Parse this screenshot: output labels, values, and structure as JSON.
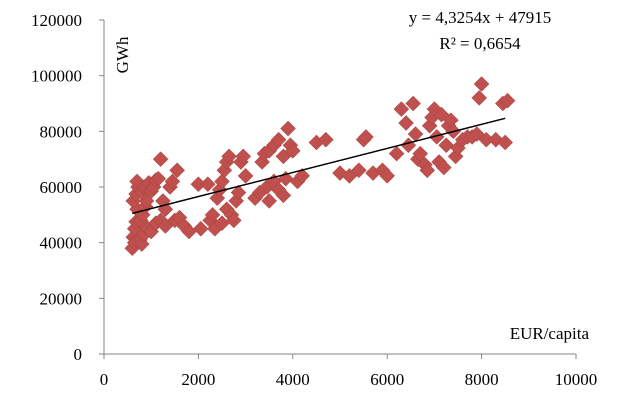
{
  "chart_data": {
    "type": "scatter",
    "title": "",
    "xlabel": "EUR/capita",
    "ylabel": "GWh",
    "xlim": [
      0,
      10000
    ],
    "ylim": [
      0,
      120000
    ],
    "x_ticks": [
      "0",
      "2000",
      "4000",
      "6000",
      "8000",
      "10000"
    ],
    "y_ticks": [
      "0",
      "20000",
      "40000",
      "60000",
      "80000",
      "100000",
      "120000"
    ],
    "grid": false,
    "marker_color": "#c0504d",
    "trendline": {
      "equation": "y = 4,3254x + 47915",
      "r_squared": "R² = 0,6654",
      "slope": 4.3254,
      "intercept": 47915,
      "x_range": [
        600,
        8500
      ],
      "color": "#000000"
    },
    "series": [
      {
        "points": [
          [
            600,
            38000
          ],
          [
            620,
            42000
          ],
          [
            650,
            45000
          ],
          [
            680,
            47500
          ],
          [
            700,
            52000
          ],
          [
            620,
            55000
          ],
          [
            680,
            57500
          ],
          [
            720,
            60000
          ],
          [
            700,
            62000
          ],
          [
            650,
            40000
          ],
          [
            760,
            41000
          ],
          [
            800,
            39500
          ],
          [
            850,
            43000
          ],
          [
            900,
            45500
          ],
          [
            780,
            48000
          ],
          [
            820,
            50000
          ],
          [
            880,
            53000
          ],
          [
            900,
            55000
          ],
          [
            800,
            58000
          ],
          [
            850,
            60000
          ],
          [
            950,
            61500
          ],
          [
            1000,
            58500
          ],
          [
            1050,
            60000
          ],
          [
            1100,
            62500
          ],
          [
            1150,
            63000
          ],
          [
            1200,
            70000
          ],
          [
            1250,
            55000
          ],
          [
            1300,
            52000
          ],
          [
            1000,
            44000
          ],
          [
            1100,
            47000
          ],
          [
            1200,
            48000
          ],
          [
            1300,
            46000
          ],
          [
            1400,
            60000
          ],
          [
            1450,
            62000
          ],
          [
            1550,
            66000
          ],
          [
            1500,
            48000
          ],
          [
            1600,
            49000
          ],
          [
            1700,
            46000
          ],
          [
            1800,
            44000
          ],
          [
            2000,
            61000
          ],
          [
            2050,
            45000
          ],
          [
            2200,
            61000
          ],
          [
            2250,
            48000
          ],
          [
            2300,
            50000
          ],
          [
            2350,
            45000
          ],
          [
            2400,
            56000
          ],
          [
            2450,
            59000
          ],
          [
            2500,
            62000
          ],
          [
            2550,
            66000
          ],
          [
            2600,
            69000
          ],
          [
            2650,
            71000
          ],
          [
            2500,
            47000
          ],
          [
            2600,
            52000
          ],
          [
            2700,
            50000
          ],
          [
            2750,
            48000
          ],
          [
            2800,
            55000
          ],
          [
            2850,
            58000
          ],
          [
            2900,
            69000
          ],
          [
            3000,
            64000
          ],
          [
            2950,
            71000
          ],
          [
            3200,
            56000
          ],
          [
            3300,
            58000
          ],
          [
            3350,
            69000
          ],
          [
            3400,
            72000
          ],
          [
            3500,
            73000
          ],
          [
            3450,
            60000
          ],
          [
            3600,
            62000
          ],
          [
            3700,
            59000
          ],
          [
            3600,
            75000
          ],
          [
            3700,
            77000
          ],
          [
            3800,
            71000
          ],
          [
            3850,
            63000
          ],
          [
            3900,
            81000
          ],
          [
            3950,
            75000
          ],
          [
            4000,
            73000
          ],
          [
            4100,
            62000
          ],
          [
            4200,
            64000
          ],
          [
            3800,
            57000
          ],
          [
            3500,
            55000
          ],
          [
            4500,
            76000
          ],
          [
            4700,
            77000
          ],
          [
            5000,
            65000
          ],
          [
            5200,
            64000
          ],
          [
            5400,
            66000
          ],
          [
            5500,
            77000
          ],
          [
            5550,
            78000
          ],
          [
            5700,
            65000
          ],
          [
            5900,
            66000
          ],
          [
            6000,
            64000
          ],
          [
            6200,
            72000
          ],
          [
            6300,
            88000
          ],
          [
            6400,
            83000
          ],
          [
            6450,
            75000
          ],
          [
            6550,
            90000
          ],
          [
            6600,
            79000
          ],
          [
            6650,
            70000
          ],
          [
            6700,
            72000
          ],
          [
            6800,
            68000
          ],
          [
            6850,
            66000
          ],
          [
            6900,
            82000
          ],
          [
            6950,
            85000
          ],
          [
            7000,
            88000
          ],
          [
            7050,
            78000
          ],
          [
            7100,
            69000
          ],
          [
            7150,
            86000
          ],
          [
            7200,
            67000
          ],
          [
            7250,
            75000
          ],
          [
            7300,
            82000
          ],
          [
            7350,
            84000
          ],
          [
            7400,
            80000
          ],
          [
            7450,
            71000
          ],
          [
            7500,
            74000
          ],
          [
            7600,
            77000
          ],
          [
            7700,
            78000
          ],
          [
            7800,
            78000
          ],
          [
            7900,
            79000
          ],
          [
            7950,
            92000
          ],
          [
            8000,
            97000
          ],
          [
            8100,
            77000
          ],
          [
            8300,
            77000
          ],
          [
            8450,
            90000
          ],
          [
            8550,
            91000
          ],
          [
            8500,
            76000
          ]
        ]
      }
    ]
  }
}
